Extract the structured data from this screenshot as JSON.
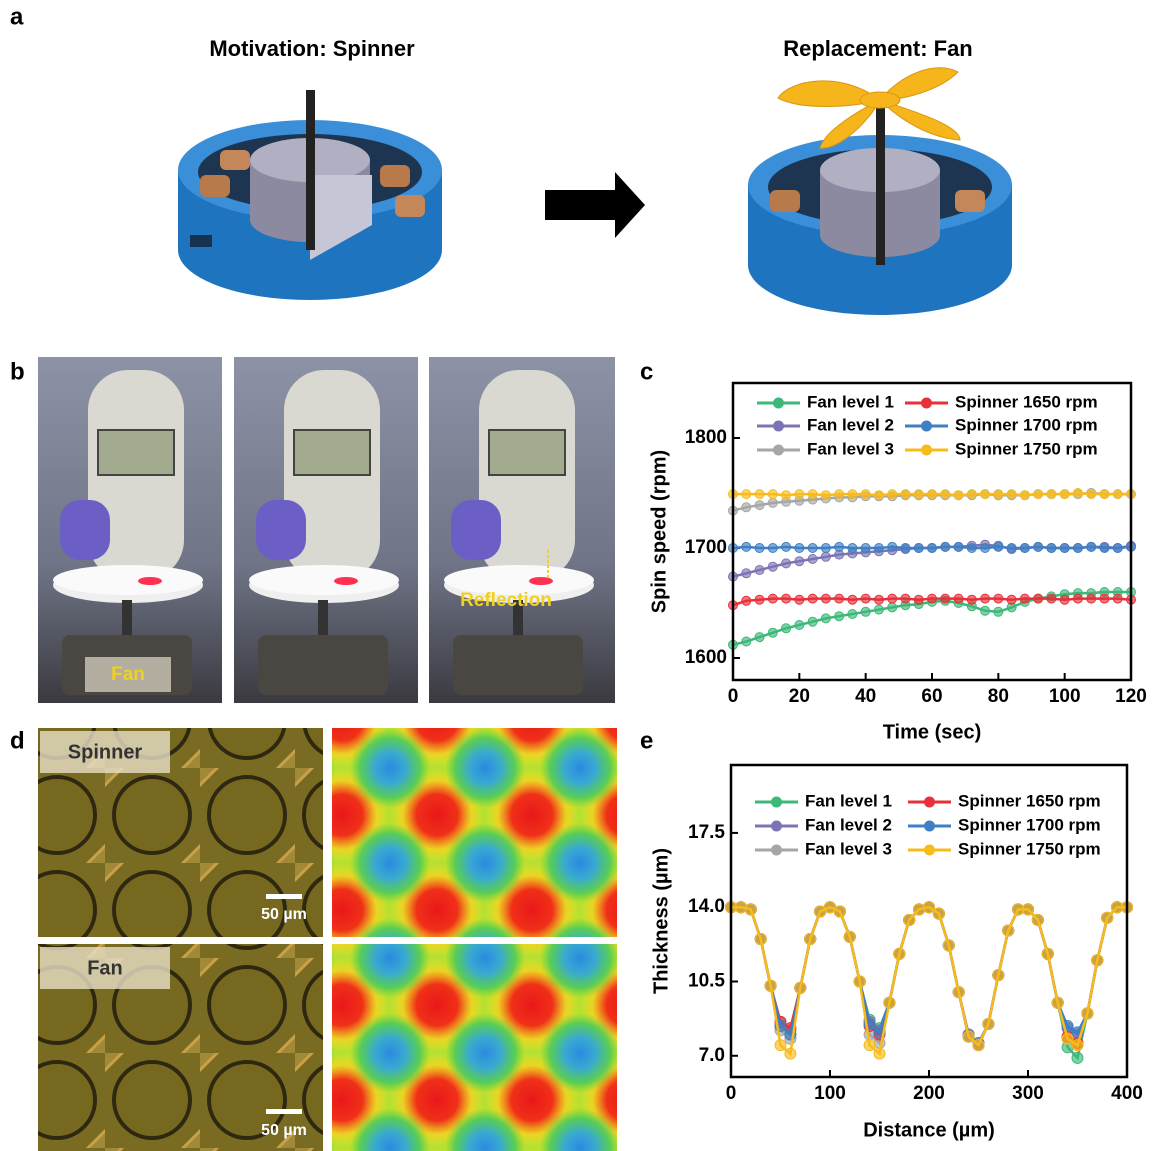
{
  "panel_labels": [
    "a",
    "b",
    "c",
    "d",
    "e"
  ],
  "panel_a": {
    "left_title": "Motivation: Spinner",
    "right_title": "Replacement: Fan"
  },
  "panel_b": {
    "fan_label": "Fan",
    "reflection_label": "Reflection"
  },
  "panel_d": {
    "spinner_label": "Spinner",
    "fan_label": "Fan",
    "scale_bars": [
      "50 µm",
      "50 µm"
    ]
  },
  "chart_data": [
    {
      "type": "line",
      "xlabel": "Time (sec)",
      "ylabel": "Spin speed (rpm)",
      "xlim": [
        0,
        120
      ],
      "xticks": [
        0,
        20,
        40,
        60,
        80,
        100,
        120
      ],
      "ylim": [
        1580,
        1850
      ],
      "yticks": [
        1600,
        1700,
        1800
      ],
      "x": [
        0,
        4,
        8,
        12,
        16,
        20,
        24,
        28,
        32,
        36,
        40,
        44,
        48,
        52,
        56,
        60,
        64,
        68,
        72,
        76,
        80,
        84,
        88,
        92,
        96,
        100,
        104,
        108,
        112,
        116,
        120
      ],
      "series": [
        {
          "name": "Fan level 1",
          "color": "#3cb878",
          "values": [
            1612,
            1615,
            1619,
            1623,
            1627,
            1630,
            1633,
            1636,
            1638,
            1640,
            1642,
            1644,
            1646,
            1648,
            1649,
            1651,
            1652,
            1650,
            1647,
            1643,
            1642,
            1646,
            1651,
            1654,
            1656,
            1658,
            1659,
            1659,
            1660,
            1660,
            1660
          ]
        },
        {
          "name": "Fan level 2",
          "color": "#7b74b4",
          "values": [
            1674,
            1677,
            1680,
            1683,
            1686,
            1688,
            1690,
            1692,
            1694,
            1695,
            1696,
            1697,
            1698,
            1699,
            1700,
            1700,
            1701,
            1701,
            1702,
            1703,
            1702,
            1699,
            1700,
            1701,
            1700,
            1700,
            1700,
            1701,
            1701,
            1700,
            1702
          ]
        },
        {
          "name": "Fan level 3",
          "color": "#a6a6a6",
          "values": [
            1734,
            1737,
            1739,
            1741,
            1742,
            1743,
            1744,
            1745,
            1746,
            1746,
            1747,
            1747,
            1747,
            1748,
            1748,
            1748,
            1748,
            1748,
            1748,
            1749,
            1748,
            1748,
            1748,
            1749,
            1749,
            1749,
            1749,
            1750,
            1749,
            1749,
            1749
          ]
        },
        {
          "name": "Spinner 1650 rpm",
          "color": "#e8303a",
          "values": [
            1648,
            1652,
            1653,
            1654,
            1654,
            1653,
            1654,
            1654,
            1654,
            1653,
            1654,
            1653,
            1654,
            1654,
            1653,
            1654,
            1654,
            1654,
            1653,
            1654,
            1654,
            1653,
            1654,
            1654,
            1654,
            1653,
            1654,
            1654,
            1654,
            1654,
            1653
          ]
        },
        {
          "name": "Spinner 1700 rpm",
          "color": "#3f7fc4",
          "values": [
            1700,
            1701,
            1700,
            1700,
            1701,
            1700,
            1700,
            1700,
            1701,
            1700,
            1700,
            1700,
            1701,
            1700,
            1700,
            1700,
            1701,
            1701,
            1700,
            1700,
            1701,
            1700,
            1700,
            1701,
            1700,
            1700,
            1700,
            1701,
            1700,
            1700,
            1701
          ]
        },
        {
          "name": "Spinner 1750 rpm",
          "color": "#f7bb1a",
          "values": [
            1749,
            1749,
            1749,
            1749,
            1748,
            1749,
            1749,
            1748,
            1749,
            1749,
            1749,
            1748,
            1749,
            1749,
            1749,
            1749,
            1749,
            1748,
            1749,
            1749,
            1749,
            1749,
            1748,
            1749,
            1749,
            1749,
            1750,
            1749,
            1749,
            1749,
            1749
          ]
        }
      ]
    },
    {
      "type": "line",
      "xlabel": "Distance (µm)",
      "ylabel": "Thickness (µm)",
      "xlim": [
        0,
        400
      ],
      "xticks": [
        0,
        100,
        200,
        300,
        400
      ],
      "ylim": [
        6,
        20.7
      ],
      "yticks": [
        {
          "value": 7,
          "label": "7.0"
        },
        10.5,
        {
          "value": 14,
          "label": "14.0"
        },
        17.5
      ],
      "x": [
        0,
        10,
        20,
        30,
        40,
        50,
        60,
        70,
        80,
        90,
        100,
        110,
        120,
        130,
        140,
        150,
        160,
        170,
        180,
        190,
        200,
        210,
        220,
        230,
        240,
        250,
        260,
        270,
        280,
        290,
        300,
        310,
        320,
        330,
        340,
        350,
        360,
        370,
        380,
        390,
        400
      ],
      "series": [
        {
          "name": "Fan level 1",
          "color": "#3cb878",
          "values": [
            14,
            14,
            13.9,
            12.5,
            10.3,
            8.6,
            8.2,
            10.2,
            12.5,
            13.8,
            14,
            13.8,
            12.6,
            10.5,
            8.7,
            8.3,
            9.5,
            11.8,
            13.4,
            13.9,
            14,
            13.7,
            12.2,
            10,
            8.0,
            7.6,
            8.5,
            10.8,
            12.9,
            13.9,
            13.9,
            13.4,
            11.8,
            9.5,
            7.4,
            6.9,
            9,
            11.5,
            13.5,
            14,
            14
          ]
        },
        {
          "name": "Fan level 2",
          "color": "#7b74b4",
          "values": [
            14,
            14,
            13.9,
            12.5,
            10.3,
            8.4,
            8.0,
            10.2,
            12.5,
            13.8,
            14,
            13.8,
            12.6,
            10.5,
            8.6,
            8.2,
            9.5,
            11.8,
            13.4,
            13.9,
            14,
            13.7,
            12.2,
            10,
            8.0,
            7.6,
            8.5,
            10.8,
            12.9,
            13.9,
            13.9,
            13.4,
            11.8,
            9.5,
            8.3,
            8.0,
            9,
            11.5,
            13.5,
            14,
            14
          ]
        },
        {
          "name": "Fan level 3",
          "color": "#a6a6a6",
          "values": [
            14,
            14,
            13.9,
            12.5,
            10.3,
            8.2,
            7.8,
            10.2,
            12.5,
            13.8,
            14,
            13.8,
            12.6,
            10.5,
            8.0,
            7.6,
            9.5,
            11.8,
            13.4,
            13.9,
            14,
            13.7,
            12.2,
            10,
            7.9,
            7.5,
            8.5,
            10.8,
            12.9,
            13.9,
            13.9,
            13.4,
            11.8,
            9.5,
            7.8,
            7.5,
            9,
            11.5,
            13.5,
            14,
            14
          ]
        },
        {
          "name": "Spinner 1650 rpm",
          "color": "#e8303a",
          "values": [
            14,
            14,
            13.9,
            12.5,
            10.3,
            8.6,
            8.3,
            10.2,
            12.5,
            13.8,
            14,
            13.8,
            12.6,
            10.5,
            8.4,
            8.0,
            9.5,
            11.8,
            13.4,
            13.9,
            14,
            13.7,
            12.2,
            10,
            7.9,
            7.5,
            8.5,
            10.8,
            12.9,
            13.9,
            13.9,
            13.4,
            11.8,
            9.5,
            7.9,
            7.6,
            9,
            11.5,
            13.5,
            14,
            14
          ]
        },
        {
          "name": "Spinner 1700 rpm",
          "color": "#3f7fc4",
          "values": [
            14,
            14,
            13.9,
            12.5,
            10.3,
            8.4,
            8.0,
            10.2,
            12.5,
            13.8,
            14,
            13.8,
            12.6,
            10.5,
            8.5,
            8.1,
            9.5,
            11.8,
            13.4,
            13.9,
            14,
            13.7,
            12.2,
            10,
            7.9,
            7.5,
            8.5,
            10.8,
            12.9,
            13.9,
            13.9,
            13.4,
            11.8,
            9.5,
            8.4,
            8.1,
            9,
            11.5,
            13.5,
            14,
            14
          ]
        },
        {
          "name": "Spinner 1750 rpm",
          "color": "#f7bb1a",
          "values": [
            14,
            14,
            13.9,
            12.5,
            10.3,
            7.5,
            7.1,
            10.2,
            12.5,
            13.8,
            14,
            13.8,
            12.6,
            10.5,
            7.5,
            7.1,
            9.5,
            11.8,
            13.4,
            13.9,
            14,
            13.7,
            12.2,
            10,
            7.9,
            7.5,
            8.5,
            10.8,
            12.9,
            13.9,
            13.9,
            13.4,
            11.8,
            9.5,
            7.8,
            7.5,
            9,
            11.5,
            13.5,
            14,
            14
          ]
        }
      ]
    }
  ]
}
